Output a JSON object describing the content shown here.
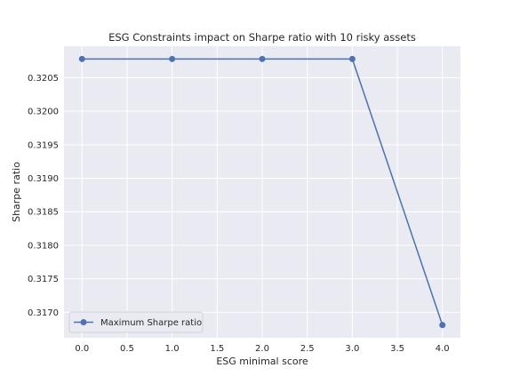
{
  "chart_data": {
    "type": "line",
    "title": "ESG Constraints impact on Sharpe ratio with 10 risky assets",
    "xlabel": "ESG minimal score",
    "ylabel": "Sharpe ratio",
    "x": [
      0.0,
      1.0,
      2.0,
      3.0,
      4.0
    ],
    "series": [
      {
        "name": "Maximum Sharpe ratio",
        "values": [
          0.32078,
          0.32078,
          0.32078,
          0.32078,
          0.31681
        ],
        "color": "#4c72b0"
      }
    ],
    "xlim": [
      -0.2,
      4.2
    ],
    "ylim": [
      0.31662,
      0.32097
    ],
    "xticks": [
      0.0,
      0.5,
      1.0,
      1.5,
      2.0,
      2.5,
      3.0,
      3.5,
      4.0
    ],
    "xtick_labels": [
      "0.0",
      "0.5",
      "1.0",
      "1.5",
      "2.0",
      "2.5",
      "3.0",
      "3.5",
      "4.0"
    ],
    "yticks": [
      0.317,
      0.3175,
      0.318,
      0.3185,
      0.319,
      0.3195,
      0.32,
      0.3205
    ],
    "ytick_labels": [
      "0.3170",
      "0.3175",
      "0.3180",
      "0.3185",
      "0.3190",
      "0.3195",
      "0.3200",
      "0.3205"
    ],
    "grid": true,
    "legend_position": "lower-left",
    "background_color": "#eaeaf2",
    "grid_color": "#ffffff"
  }
}
